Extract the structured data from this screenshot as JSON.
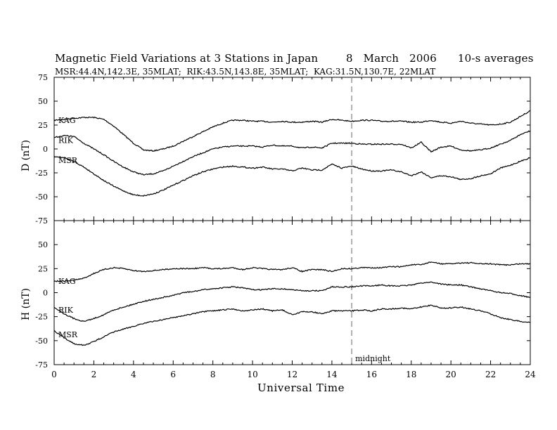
{
  "chart_data": [
    {
      "type": "line",
      "title": "Magnetic Field Variations at 3 Stations in Japan        8   March   2006      10-s averages",
      "subtitle": "MSR:44.4N,142.3E, 35MLAT;  RIK:43.5N,143.8E, 35MLAT;  KAG:31.5N,130.7E, 22MLAT",
      "ylabel": "D (nT)",
      "xlabel": "Universal Time",
      "xlim": [
        0,
        24
      ],
      "ylim": [
        -75,
        75
      ],
      "yticks": [
        75,
        50,
        25,
        0,
        -25,
        -50,
        -75
      ],
      "xticks": [
        0,
        2,
        4,
        6,
        8,
        10,
        12,
        14,
        16,
        18,
        20,
        22,
        24
      ],
      "series": [
        {
          "name": "KAG",
          "x": [
            0,
            0.5,
            1,
            1.5,
            2,
            2.5,
            3,
            3.5,
            4,
            4.5,
            5,
            5.5,
            6,
            6.5,
            7,
            7.5,
            8,
            8.5,
            9,
            9.5,
            10,
            10.5,
            11,
            11.5,
            12,
            12.5,
            13,
            13.5,
            14,
            14.5,
            15,
            15.5,
            16,
            16.5,
            17,
            17.5,
            18,
            18.5,
            19,
            19.5,
            20,
            20.5,
            21,
            21.5,
            22,
            22.5,
            23,
            23.5,
            24
          ],
          "values": [
            30,
            31,
            32,
            33,
            33,
            31,
            24,
            15,
            6,
            -1,
            -2,
            0,
            3,
            8,
            13,
            18,
            23,
            27,
            30,
            30,
            29,
            29,
            28,
            29,
            28,
            28,
            29,
            28,
            31,
            30,
            29,
            30,
            30,
            29,
            29,
            29,
            28,
            28,
            30,
            28,
            27,
            29,
            27,
            26,
            25,
            26,
            28,
            34,
            40
          ]
        },
        {
          "name": "RIK",
          "x": [
            0,
            0.5,
            1,
            1.5,
            2,
            2.5,
            3,
            3.5,
            4,
            4.5,
            5,
            5.5,
            6,
            6.5,
            7,
            7.5,
            8,
            8.5,
            9,
            9.5,
            10,
            10.5,
            11,
            11.5,
            12,
            12.5,
            13,
            13.5,
            14,
            14.5,
            15,
            15.5,
            16,
            16.5,
            17,
            17.5,
            18,
            18.5,
            19,
            19.5,
            20,
            20.5,
            21,
            21.5,
            22,
            22.5,
            23,
            23.5,
            24
          ],
          "values": [
            12,
            14,
            13,
            6,
            0,
            -6,
            -13,
            -19,
            -24,
            -27,
            -26,
            -23,
            -18,
            -13,
            -8,
            -4,
            0,
            2,
            3,
            3,
            3,
            2,
            4,
            3,
            3,
            1,
            2,
            1,
            6,
            6,
            6,
            5,
            5,
            5,
            5,
            5,
            1,
            7,
            -3,
            2,
            3,
            -1,
            -2,
            -1,
            1,
            5,
            9,
            15,
            19
          ]
        },
        {
          "name": "MSR",
          "x": [
            0,
            0.5,
            1,
            1.5,
            2,
            2.5,
            3,
            3.5,
            4,
            4.5,
            5,
            5.5,
            6,
            6.5,
            7,
            7.5,
            8,
            8.5,
            9,
            9.5,
            10,
            10.5,
            11,
            11.5,
            12,
            12.5,
            13,
            13.5,
            14,
            14.5,
            15,
            15.5,
            16,
            16.5,
            17,
            17.5,
            18,
            18.5,
            19,
            19.5,
            20,
            20.5,
            21,
            21.5,
            22,
            22.5,
            23,
            23.5,
            24
          ],
          "values": [
            -8,
            -9,
            -13,
            -19,
            -26,
            -33,
            -39,
            -44,
            -48,
            -49,
            -47,
            -43,
            -38,
            -33,
            -28,
            -24,
            -21,
            -19,
            -18,
            -19,
            -20,
            -19,
            -21,
            -21,
            -23,
            -20,
            -22,
            -22,
            -16,
            -20,
            -18,
            -21,
            -23,
            -23,
            -22,
            -24,
            -28,
            -24,
            -30,
            -28,
            -29,
            -32,
            -31,
            -28,
            -26,
            -20,
            -17,
            -13,
            -9
          ]
        }
      ],
      "vline": {
        "x": 15,
        "style": "dashed"
      }
    },
    {
      "type": "line",
      "ylabel": "H (nT)",
      "xlabel": "Universal Time",
      "xlim": [
        0,
        24
      ],
      "ylim": [
        -75,
        75
      ],
      "yticks": [
        75,
        50,
        25,
        0,
        -25,
        -50,
        -75
      ],
      "xticks": [
        0,
        2,
        4,
        6,
        8,
        10,
        12,
        14,
        16,
        18,
        20,
        22,
        24
      ],
      "series": [
        {
          "name": "KAG",
          "x": [
            0,
            0.5,
            1,
            1.5,
            2,
            2.5,
            3,
            3.5,
            4,
            4.5,
            5,
            5.5,
            6,
            6.5,
            7,
            7.5,
            8,
            8.5,
            9,
            9.5,
            10,
            10.5,
            11,
            11.5,
            12,
            12.5,
            13,
            13.5,
            14,
            14.5,
            15,
            15.5,
            16,
            16.5,
            17,
            17.5,
            18,
            18.5,
            19,
            19.5,
            20,
            20.5,
            21,
            21.5,
            22,
            22.5,
            23,
            23.5,
            24
          ],
          "values": [
            12,
            12,
            13,
            15,
            20,
            24,
            26,
            25,
            23,
            22,
            23,
            24,
            25,
            25,
            25,
            26,
            25,
            25,
            26,
            24,
            26,
            25,
            24,
            24,
            26,
            22,
            24,
            24,
            22,
            25,
            25,
            26,
            26,
            26,
            27,
            27,
            29,
            29,
            32,
            30,
            30,
            31,
            31,
            30,
            30,
            29,
            29,
            30,
            30
          ]
        },
        {
          "name": "RIK",
          "x": [
            0,
            0.5,
            1,
            1.5,
            2,
            2.5,
            3,
            3.5,
            4,
            4.5,
            5,
            5.5,
            6,
            6.5,
            7,
            7.5,
            8,
            8.5,
            9,
            9.5,
            10,
            10.5,
            11,
            11.5,
            12,
            12.5,
            13,
            13.5,
            14,
            14.5,
            15,
            15.5,
            16,
            16.5,
            17,
            17.5,
            18,
            18.5,
            19,
            19.5,
            20,
            20.5,
            21,
            21.5,
            22,
            22.5,
            23,
            23.5,
            24
          ],
          "values": [
            -15,
            -22,
            -27,
            -30,
            -27,
            -23,
            -18,
            -15,
            -12,
            -9,
            -7,
            -5,
            -3,
            0,
            1,
            3,
            4,
            5,
            6,
            5,
            3,
            3,
            4,
            4,
            3,
            2,
            2,
            2,
            6,
            6,
            6,
            7,
            7,
            8,
            7,
            7,
            8,
            10,
            11,
            9,
            8,
            8,
            6,
            4,
            2,
            0,
            -1,
            -3,
            -5
          ]
        },
        {
          "name": "MSR",
          "x": [
            0,
            0.5,
            1,
            1.5,
            2,
            2.5,
            3,
            3.5,
            4,
            4.5,
            5,
            5.5,
            6,
            6.5,
            7,
            7.5,
            8,
            8.5,
            9,
            9.5,
            10,
            10.5,
            11,
            11.5,
            12,
            12.5,
            13,
            13.5,
            14,
            14.5,
            15,
            15.5,
            16,
            16.5,
            17,
            17.5,
            18,
            18.5,
            19,
            19.5,
            20,
            20.5,
            21,
            21.5,
            22,
            22.5,
            23,
            23.5,
            24
          ],
          "values": [
            -40,
            -47,
            -53,
            -55,
            -51,
            -46,
            -41,
            -38,
            -35,
            -32,
            -30,
            -28,
            -26,
            -24,
            -22,
            -20,
            -19,
            -18,
            -17,
            -19,
            -18,
            -17,
            -19,
            -18,
            -23,
            -20,
            -20,
            -22,
            -19,
            -19,
            -19,
            -18,
            -19,
            -17,
            -17,
            -16,
            -17,
            -15,
            -13,
            -16,
            -16,
            -15,
            -17,
            -19,
            -22,
            -26,
            -28,
            -30,
            -31
          ]
        }
      ],
      "vline": {
        "x": 15,
        "style": "dashed",
        "label": "midnight"
      }
    }
  ]
}
